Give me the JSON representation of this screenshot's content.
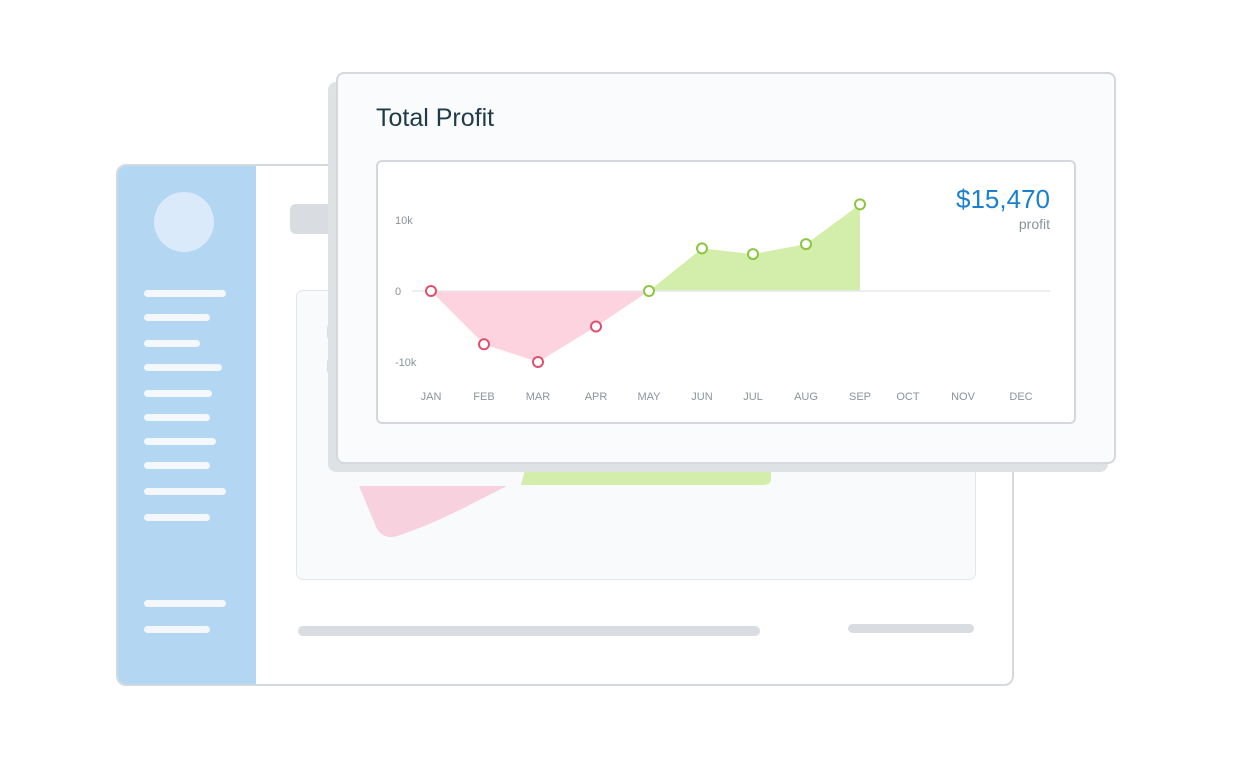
{
  "card": {
    "title": "Total Profit"
  },
  "summary": {
    "value": "$15,470",
    "label": "profit"
  },
  "colors": {
    "positive_fill": "#d3edaa",
    "positive_stroke": "#8cc63f",
    "negative_fill": "#fdd3e0",
    "negative_stroke": "#e0506e",
    "accent": "#1a80d0"
  },
  "chart_data": {
    "type": "area",
    "title": "Total Profit",
    "categories": [
      "JAN",
      "FEB",
      "MAR",
      "APR",
      "MAY",
      "JUN",
      "JUL",
      "AUG",
      "SEP",
      "OCT",
      "NOV",
      "DEC"
    ],
    "series": [
      {
        "values": [
          0,
          -7500,
          -10000,
          -5000,
          0,
          6000,
          5200,
          6600,
          12200,
          null,
          null,
          null
        ]
      }
    ],
    "y_ticks": [
      {
        "value": 10000,
        "label": "10k"
      },
      {
        "value": 0,
        "label": "0"
      },
      {
        "value": -10000,
        "label": "-10k"
      }
    ],
    "ylim": [
      -12000,
      14000
    ],
    "grid": false,
    "zero_line": true
  }
}
